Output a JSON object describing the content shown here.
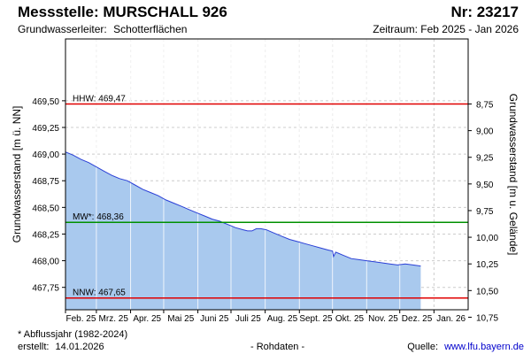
{
  "header": {
    "station_label": "Messstelle: MURSCHALL 926",
    "nr_label": "Nr: 23217",
    "aquifer_label": "Grundwasserleiter:",
    "aquifer_value": "Schotterflächen",
    "period_label": "Zeitraum: Feb 2025 - Jan 2026"
  },
  "footer": {
    "note": "* Abflussjahr (1982-2024)",
    "created_label": "erstellt:",
    "created_date": "14.01.2026",
    "raw_data": "- Rohdaten -",
    "source_label": "Quelle:",
    "source_url": "www.lfu.bayern.de"
  },
  "colors": {
    "fill": "#a9c9ee",
    "line": "#2a3fd6",
    "hhw": "#e00000",
    "mw": "#009000",
    "nnw": "#e00000",
    "grid": "#cccccc"
  },
  "chart_data": {
    "type": "area",
    "ylabel": "Grundwasserstand [m ü. NN]",
    "y2label": "Grundwasserstand [m u. Gelände]",
    "ylim": [
      467.54,
      470.08
    ],
    "y_ticks": [
      "467,75",
      "468,00",
      "468,25",
      "468,50",
      "468,75",
      "469,00",
      "469,25",
      "469,50"
    ],
    "y2_ticks": [
      "8,75",
      "9,00",
      "9,25",
      "9,50",
      "9,75",
      "10,00",
      "10,25",
      "10,50",
      "10,75"
    ],
    "x_ticks": [
      "Feb. 25",
      "Mrz. 25",
      "Apr. 25",
      "Mai 25",
      "Juni 25",
      "Juli 25",
      "Aug. 25",
      "Sept. 25",
      "Okt. 25",
      "Nov. 25",
      "Dez. 25",
      "Jan. 26"
    ],
    "grid": true,
    "reference_lines": [
      {
        "label": "HHW: 469,47",
        "value": 469.47
      },
      {
        "label": "MW*: 468,36",
        "value": 468.36
      },
      {
        "label": "NNW: 467,65",
        "value": 467.65
      }
    ],
    "series": [
      {
        "x": [
          "2025-02-01",
          "2025-02-08",
          "2025-02-15",
          "2025-02-22",
          "2025-03-01",
          "2025-03-08",
          "2025-03-15",
          "2025-03-22",
          "2025-03-29",
          "2025-04-05",
          "2025-04-12",
          "2025-04-19",
          "2025-04-26",
          "2025-05-03",
          "2025-05-10",
          "2025-05-17",
          "2025-05-24",
          "2025-05-31",
          "2025-06-07",
          "2025-06-14",
          "2025-06-21",
          "2025-06-28",
          "2025-07-05",
          "2025-07-12",
          "2025-07-16",
          "2025-07-20",
          "2025-07-24",
          "2025-07-28",
          "2025-08-02",
          "2025-08-09",
          "2025-08-16",
          "2025-08-23",
          "2025-08-30",
          "2025-09-06",
          "2025-09-13",
          "2025-09-20",
          "2025-09-27",
          "2025-10-01",
          "2025-10-02",
          "2025-10-04",
          "2025-10-11",
          "2025-10-18",
          "2025-10-25",
          "2025-11-01",
          "2025-11-08",
          "2025-11-15",
          "2025-11-22",
          "2025-11-29",
          "2025-12-06",
          "2025-12-13",
          "2025-12-20"
        ],
        "values": [
          469.02,
          468.99,
          468.95,
          468.92,
          468.88,
          468.84,
          468.8,
          468.77,
          468.75,
          468.71,
          468.67,
          468.64,
          468.61,
          468.57,
          468.54,
          468.51,
          468.48,
          468.45,
          468.42,
          468.39,
          468.37,
          468.34,
          468.31,
          468.29,
          468.28,
          468.28,
          468.3,
          468.3,
          468.29,
          468.26,
          468.23,
          468.2,
          468.18,
          468.16,
          468.14,
          468.12,
          468.1,
          468.09,
          468.04,
          468.08,
          468.05,
          468.02,
          468.01,
          468.0,
          467.99,
          467.98,
          467.97,
          467.96,
          467.97,
          467.96,
          467.95
        ]
      }
    ]
  }
}
